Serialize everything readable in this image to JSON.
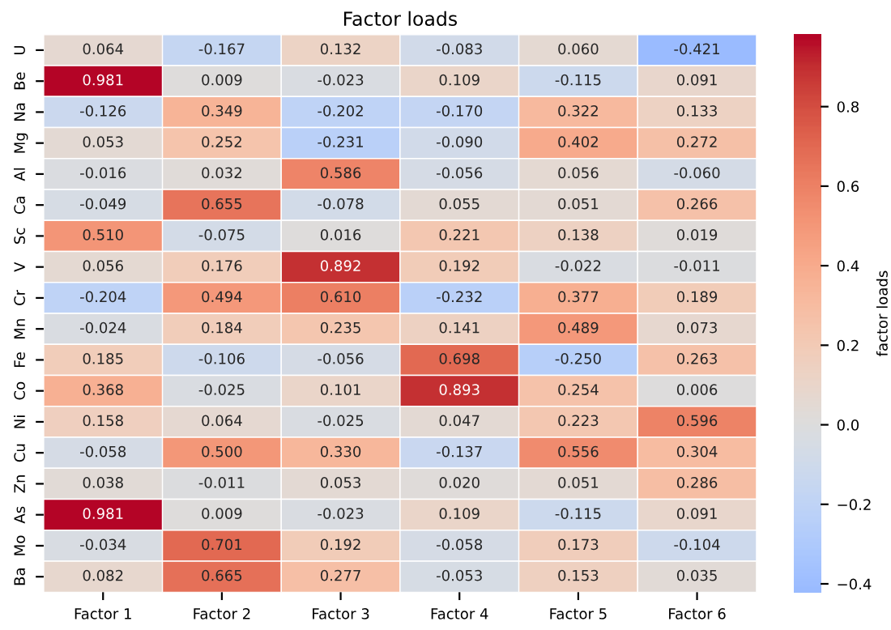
{
  "chart_data": {
    "type": "heatmap",
    "title": "Factor loads",
    "clabel": "factor loads",
    "categories": [
      "Factor 1",
      "Factor 2",
      "Factor 3",
      "Factor 4",
      "Factor 5",
      "Factor 6"
    ],
    "y_categories": [
      "U",
      "Be",
      "Na",
      "Mg",
      "Al",
      "Ca",
      "Sc",
      "V",
      "Cr",
      "Mn",
      "Fe",
      "Co",
      "Ni",
      "Cu",
      "Zn",
      "As",
      "Mo",
      "Ba"
    ],
    "cells": [
      [
        0.064,
        -0.167,
        0.132,
        -0.083,
        0.06,
        -0.421
      ],
      [
        0.981,
        0.009,
        -0.023,
        0.109,
        -0.115,
        0.091
      ],
      [
        -0.126,
        0.349,
        -0.202,
        -0.17,
        0.322,
        0.133
      ],
      [
        0.053,
        0.252,
        -0.231,
        -0.09,
        0.402,
        0.272
      ],
      [
        -0.016,
        0.032,
        0.586,
        -0.056,
        0.056,
        -0.06
      ],
      [
        -0.049,
        0.655,
        -0.078,
        0.055,
        0.051,
        0.266
      ],
      [
        0.51,
        -0.075,
        0.016,
        0.221,
        0.138,
        0.019
      ],
      [
        0.056,
        0.176,
        0.892,
        0.192,
        -0.022,
        -0.011
      ],
      [
        -0.204,
        0.494,
        0.61,
        -0.232,
        0.377,
        0.189
      ],
      [
        -0.024,
        0.184,
        0.235,
        0.141,
        0.489,
        0.073
      ],
      [
        0.185,
        -0.106,
        -0.056,
        0.698,
        -0.25,
        0.263
      ],
      [
        0.368,
        -0.025,
        0.101,
        0.893,
        0.254,
        0.006
      ],
      [
        0.158,
        0.064,
        -0.025,
        0.047,
        0.223,
        0.596
      ],
      [
        -0.058,
        0.5,
        0.33,
        -0.137,
        0.556,
        0.304
      ],
      [
        0.038,
        -0.011,
        0.053,
        0.02,
        0.051,
        0.286
      ],
      [
        0.981,
        0.009,
        -0.023,
        0.109,
        -0.115,
        0.091
      ],
      [
        -0.034,
        0.701,
        0.192,
        -0.058,
        0.173,
        -0.104
      ],
      [
        0.082,
        0.665,
        0.277,
        -0.053,
        0.153,
        0.035
      ]
    ],
    "cell_labels": [
      [
        "0.064",
        "-0.167",
        "0.132",
        "-0.083",
        "0.060",
        "-0.421"
      ],
      [
        "0.981",
        "0.009",
        "-0.023",
        "0.109",
        "-0.115",
        "0.091"
      ],
      [
        "-0.126",
        "0.349",
        "-0.202",
        "-0.170",
        "0.322",
        "0.133"
      ],
      [
        "0.053",
        "0.252",
        "-0.231",
        "-0.090",
        "0.402",
        "0.272"
      ],
      [
        "-0.016",
        "0.032",
        "0.586",
        "-0.056",
        "0.056",
        "-0.060"
      ],
      [
        "-0.049",
        "0.655",
        "-0.078",
        "0.055",
        "0.051",
        "0.266"
      ],
      [
        "0.510",
        "-0.075",
        "0.016",
        "0.221",
        "0.138",
        "0.019"
      ],
      [
        "0.056",
        "0.176",
        "0.892",
        "0.192",
        "-0.022",
        "-0.011"
      ],
      [
        "-0.204",
        "0.494",
        "0.610",
        "-0.232",
        "0.377",
        "0.189"
      ],
      [
        "-0.024",
        "0.184",
        "0.235",
        "0.141",
        "0.489",
        "0.073"
      ],
      [
        "0.185",
        "-0.106",
        "-0.056",
        "0.698",
        "-0.250",
        "0.263"
      ],
      [
        "0.368",
        "-0.025",
        "0.101",
        "0.893",
        "0.254",
        "0.006"
      ],
      [
        "0.158",
        "0.064",
        "-0.025",
        "0.047",
        "0.223",
        "0.596"
      ],
      [
        "-0.058",
        "0.500",
        "0.330",
        "-0.137",
        "0.556",
        "0.304"
      ],
      [
        "0.038",
        "-0.011",
        "0.053",
        "0.020",
        "0.051",
        "0.286"
      ],
      [
        "0.981",
        "0.009",
        "-0.023",
        "0.109",
        "-0.115",
        "0.091"
      ],
      [
        "-0.034",
        "0.701",
        "0.192",
        "-0.058",
        "0.173",
        "-0.104"
      ],
      [
        "0.082",
        "0.665",
        "0.277",
        "-0.053",
        "0.153",
        "0.035"
      ]
    ],
    "clim": [
      -0.421,
      0.981
    ],
    "cticks": [
      {
        "value": -0.4,
        "label": "−0.4"
      },
      {
        "value": -0.2,
        "label": "−0.2"
      },
      {
        "value": 0.0,
        "label": "0.0"
      },
      0.2,
      0.4,
      0.6,
      0.8
    ]
  }
}
